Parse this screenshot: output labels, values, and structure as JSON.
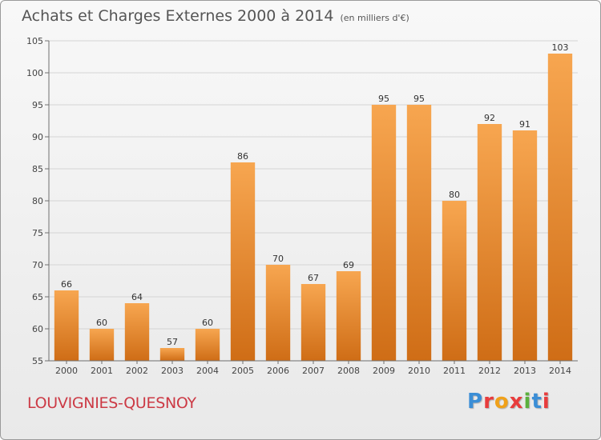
{
  "header": {
    "title": "Achats et Charges Externes 2000 à 2014",
    "subtitle": "(en milliers d'€)"
  },
  "footer": {
    "commune": "LOUVIGNIES-QUESNOY",
    "brand_letters": [
      "P",
      "r",
      "o",
      "x",
      "i",
      "t",
      "i"
    ],
    "brand_colors": [
      "#3b8ed6",
      "#e83c3c",
      "#f0a11a",
      "#e83c3c",
      "#5bb03d",
      "#3b8ed6",
      "#e83c3c"
    ]
  },
  "colors": {
    "bar_light": "#f7a650",
    "bar_dark": "#cf6d16",
    "grid": "#d4d4d4",
    "axis": "#6f6f6f"
  },
  "chart_data": {
    "type": "bar",
    "title": "Achats et Charges Externes 2000 à 2014",
    "subtitle": "(en milliers d'€)",
    "categories": [
      "2000",
      "2001",
      "2002",
      "2003",
      "2004",
      "2005",
      "2006",
      "2007",
      "2008",
      "2009",
      "2010",
      "2011",
      "2012",
      "2013",
      "2014"
    ],
    "values": [
      66,
      60,
      64,
      57,
      60,
      86,
      70,
      67,
      69,
      95,
      95,
      80,
      92,
      91,
      103
    ],
    "ylim": [
      55,
      105
    ],
    "yticks": [
      55,
      60,
      65,
      70,
      75,
      80,
      85,
      90,
      95,
      100,
      105
    ],
    "grid": true,
    "legend": "none"
  }
}
